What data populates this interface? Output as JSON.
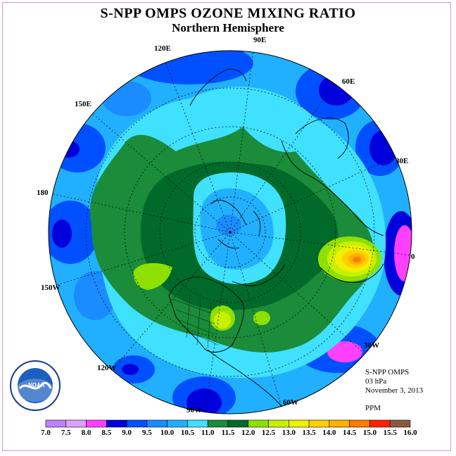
{
  "title": "S-NPP OMPS OZONE MIXING RATIO",
  "subtitle": "Northern Hemisphere",
  "longitudes": [
    {
      "label": "90E"
    },
    {
      "label": "60E"
    },
    {
      "label": "30E"
    },
    {
      "label": "0"
    },
    {
      "label": "30W"
    },
    {
      "label": "60W"
    },
    {
      "label": "90W"
    },
    {
      "label": "120W"
    },
    {
      "label": "150W"
    },
    {
      "label": "180"
    },
    {
      "label": "150E"
    },
    {
      "label": "120E"
    }
  ],
  "info": {
    "instrument": "S-NPP OMPS",
    "level": "03 hPa",
    "date": "November 3, 2013",
    "units": "PPM"
  },
  "logo_text": "NOAA",
  "colorbar": {
    "levels": [
      "7.0",
      "7.5",
      "8.0",
      "8.5",
      "9.0",
      "9.5",
      "10.0",
      "10.5",
      "11.0",
      "11.5",
      "12.0",
      "12.5",
      "13.0",
      "13.5",
      "14.0",
      "14.5",
      "15.0",
      "15.5",
      "16.0"
    ],
    "colors": [
      "#c080ff",
      "#e0a0ff",
      "#ff40ff",
      "#0000dd",
      "#0050ff",
      "#1b8cff",
      "#20b0ff",
      "#40e0ff",
      "#1a8c3a",
      "#006a2a",
      "#8ee000",
      "#c8f000",
      "#f0f000",
      "#ffd000",
      "#ffb000",
      "#ff7a00",
      "#ff2000",
      "#8b5a3c"
    ]
  }
}
